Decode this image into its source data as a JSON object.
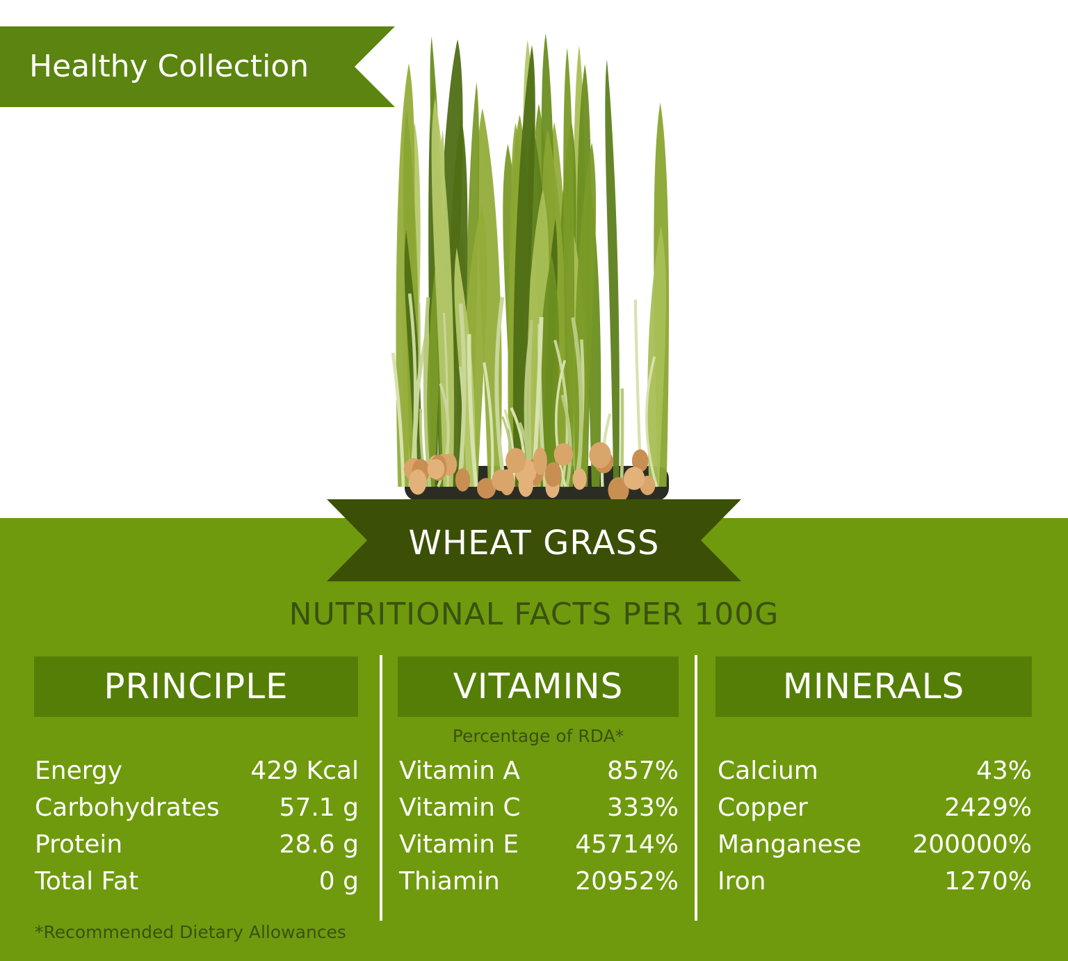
{
  "banner": {
    "label": "Healthy Collection"
  },
  "product": {
    "name": "WHEAT GRASS"
  },
  "subtitle": "NUTRITIONAL FACTS PER 100G",
  "colors": {
    "dark_green": "#3a5110",
    "panel_green": "#6f9a0d",
    "header_green": "#557e06",
    "ribbon_dark": "#3b4f07"
  },
  "principle": {
    "header": "PRINCIPLE",
    "rows": [
      {
        "label": "Energy",
        "value": "429 Kcal"
      },
      {
        "label": "Carbohydrates",
        "value": "57.1 g"
      },
      {
        "label": "Protein",
        "value": "28.6 g"
      },
      {
        "label": "Total Fat",
        "value": "0 g"
      }
    ]
  },
  "vitamins": {
    "header": "VITAMINS",
    "note": "Percentage of RDA*",
    "rows": [
      {
        "label": "Vitamin A",
        "value": "857%"
      },
      {
        "label": "Vitamin C",
        "value": "333%"
      },
      {
        "label": "Vitamin E",
        "value": "45714%"
      },
      {
        "label": "Thiamin",
        "value": "20952%"
      }
    ]
  },
  "minerals": {
    "header": "MINERALS",
    "rows": [
      {
        "label": "Calcium",
        "value": "43%"
      },
      {
        "label": "Copper",
        "value": "2429%"
      },
      {
        "label": "Manganese",
        "value": "200000%"
      },
      {
        "label": "Iron",
        "value": "1270%"
      }
    ]
  },
  "footnote": "*Recommended Dietary Allowances",
  "illustration": {
    "icon": "wheat-grass-sprouts-illustration"
  }
}
